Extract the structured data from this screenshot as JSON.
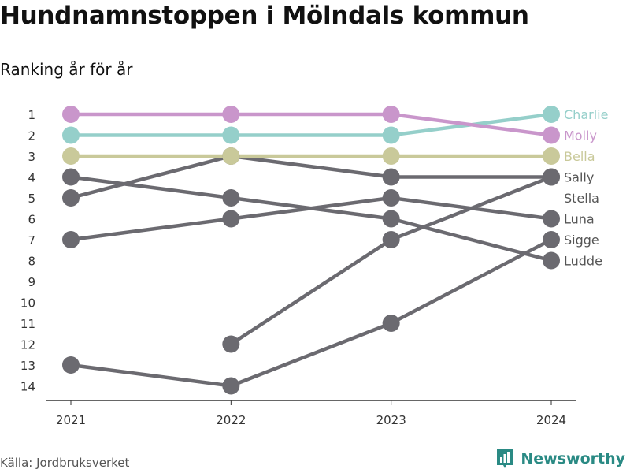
{
  "header": {
    "title": "Hundnamnstoppen i Mölndals kommun",
    "subtitle": "Ranking år för år"
  },
  "footer": {
    "source": "Källa: Jordbruksverket",
    "brand": "Newsworthy",
    "brand_color": "#2a8a84",
    "brand_icon": "bar-chart-logo-icon"
  },
  "chart_data": {
    "type": "line",
    "x": [
      2021,
      2022,
      2023,
      2024
    ],
    "y_ticks": [
      1,
      2,
      3,
      4,
      5,
      6,
      7,
      8,
      9,
      10,
      11,
      12,
      13,
      14
    ],
    "y_axis": "reversed rank",
    "grid": false,
    "legend": "labels at line ends",
    "series": [
      {
        "name": "Ludde",
        "values": [
          4,
          5,
          6,
          8
        ],
        "color": "#6b6a70"
      },
      {
        "name": "Sigge",
        "values": [
          13,
          14,
          11,
          7
        ],
        "color": "#6b6a70"
      },
      {
        "name": "Luna",
        "values": [
          7,
          6,
          5,
          6
        ],
        "color": "#6b6a70"
      },
      {
        "name": "Stella",
        "values": [
          null,
          null,
          null,
          null
        ],
        "color": "#6b6a70"
      },
      {
        "name": "Sally",
        "values": [
          null,
          12,
          7,
          4
        ],
        "color": "#6b6a70"
      },
      {
        "name": "Bella",
        "values": [
          3,
          3,
          3,
          3
        ],
        "color": "#c9c99a"
      },
      {
        "name": "Charlie",
        "values": [
          2,
          2,
          2,
          1
        ],
        "color": "#95cfca"
      },
      {
        "name": "Molly",
        "values": [
          1,
          1,
          1,
          2
        ],
        "color": "#c996cb"
      }
    ],
    "extra_segments": [
      {
        "color": "#6b6a70",
        "points": [
          [
            2021,
            5
          ],
          [
            2022,
            3
          ],
          [
            2023,
            4
          ],
          [
            2024,
            4
          ]
        ]
      }
    ],
    "end_labels": [
      {
        "name": "Charlie",
        "rank": 1,
        "color": "#95cfca"
      },
      {
        "name": "Molly",
        "rank": 2,
        "color": "#c996cb"
      },
      {
        "name": "Bella",
        "rank": 3,
        "color": "#c9c99a"
      },
      {
        "name": "Sally",
        "rank": 4,
        "color": "#555555"
      },
      {
        "name": "Stella",
        "rank": 5,
        "color": "#555555"
      },
      {
        "name": "Luna",
        "rank": 6,
        "color": "#555555"
      },
      {
        "name": "Sigge",
        "rank": 7,
        "color": "#555555"
      },
      {
        "name": "Ludde",
        "rank": 8,
        "color": "#555555"
      }
    ]
  }
}
